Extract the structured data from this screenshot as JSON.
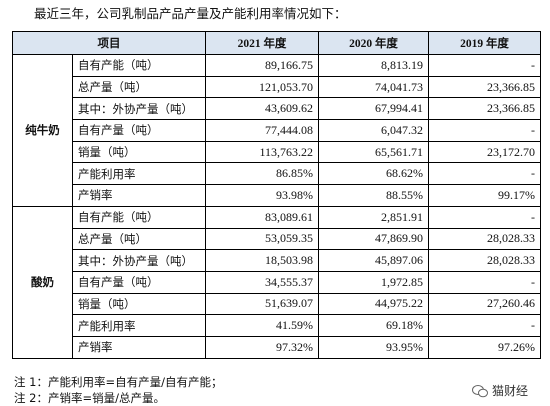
{
  "intro": "最近三年，公司乳制品产品产量及产能利用率情况如下：",
  "table": {
    "header": [
      "项目",
      "2021 年度",
      "2020 年度",
      "2019 年度"
    ],
    "groups": [
      {
        "name": "纯牛奶",
        "rows": [
          [
            "自有产能（吨）",
            "89,166.75",
            "8,813.19",
            "-"
          ],
          [
            "总产量（吨）",
            "121,053.70",
            "74,041.73",
            "23,366.85"
          ],
          [
            "其中：外协产量（吨）",
            "43,609.62",
            "67,994.41",
            "23,366.85"
          ],
          [
            "自有产量（吨）",
            "77,444.08",
            "6,047.32",
            "-"
          ],
          [
            "销量（吨）",
            "113,763.22",
            "65,561.71",
            "23,172.70"
          ],
          [
            "产能利用率",
            "86.85%",
            "68.62%",
            "-"
          ],
          [
            "产销率",
            "93.98%",
            "88.55%",
            "99.17%"
          ]
        ]
      },
      {
        "name": "酸奶",
        "rows": [
          [
            "自有产能（吨）",
            "83,089.61",
            "2,851.91",
            "-"
          ],
          [
            "总产量（吨）",
            "53,059.35",
            "47,869.90",
            "28,028.33"
          ],
          [
            "其中：外协产量（吨）",
            "18,503.98",
            "45,897.06",
            "28,028.33"
          ],
          [
            "自有产量（吨）",
            "34,555.37",
            "1,972.85",
            "-"
          ],
          [
            "销量（吨）",
            "51,639.07",
            "44,975.22",
            "27,260.46"
          ],
          [
            "产能利用率",
            "41.59%",
            "69.18%",
            "-"
          ],
          [
            "产销率",
            "97.32%",
            "93.95%",
            "97.26%"
          ]
        ]
      }
    ]
  },
  "notes": [
    "注 1：产能利用率=自有产量/自有产能；",
    "注 2：产销率=销量/总产量。"
  ],
  "watermark": "猫财经"
}
